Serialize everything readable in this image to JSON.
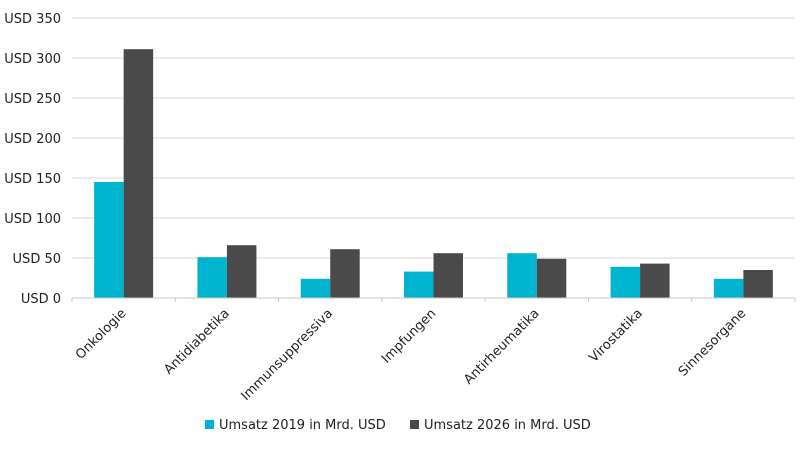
{
  "chart_data": {
    "type": "bar",
    "categories": [
      "Onkologie",
      "Antidiabetika",
      "Immunsuppressiva",
      "Impfungen",
      "Antirheumatika",
      "Virostatika",
      "Sinnesorgane"
    ],
    "series": [
      {
        "name": "Umsatz 2019 in Mrd. USD",
        "values": [
          145,
          51,
          24,
          33,
          56,
          39,
          24
        ],
        "color": "#00b4d0"
      },
      {
        "name": "Umsatz 2026 in Mrd. USD",
        "values": [
          311,
          66,
          61,
          56,
          49,
          43,
          35
        ],
        "color": "#4a4a4a"
      }
    ],
    "ylim": [
      0,
      350
    ],
    "yticks": [
      0,
      50,
      100,
      150,
      200,
      250,
      300,
      350
    ],
    "ytick_labels": [
      "USD 0",
      "USD 50",
      "USD 100",
      "USD 150",
      "USD 200",
      "USD 250",
      "USD 300",
      "USD 350"
    ],
    "grid": true,
    "grid_color": "#d9d9d9",
    "legend_position": "bottom"
  }
}
